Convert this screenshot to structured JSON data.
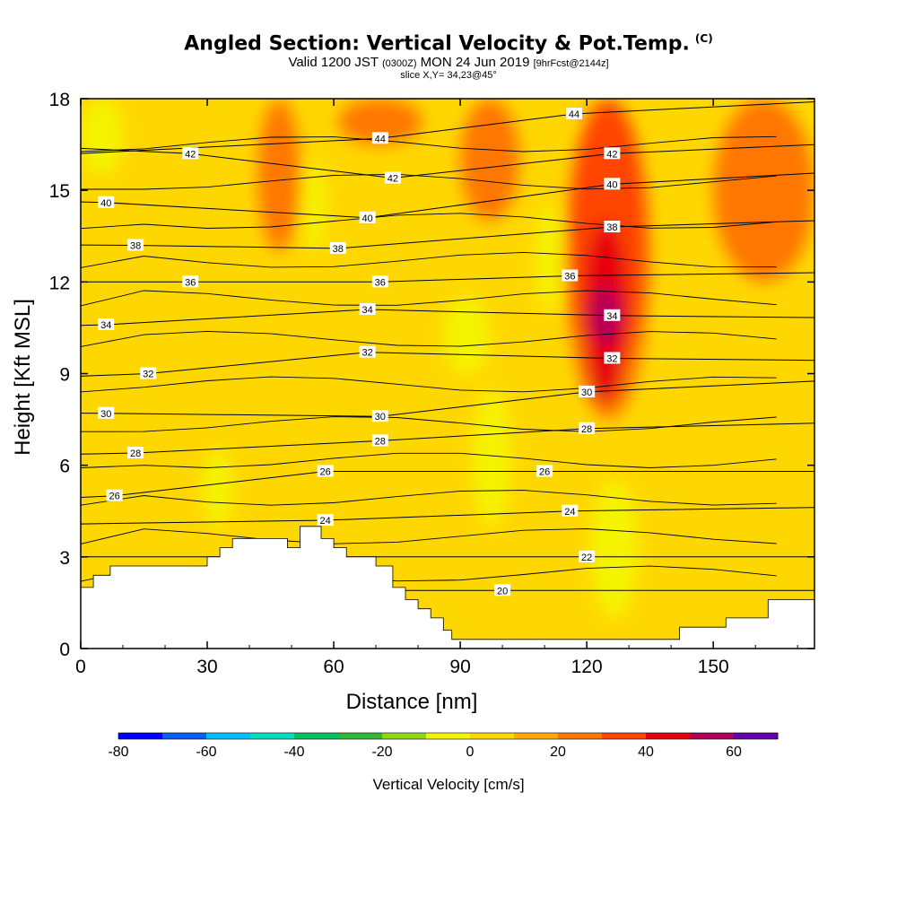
{
  "header": {
    "title": "Angled Section: Vertical Velocity & Pot.Temp.",
    "title_unit": "(C)",
    "valid_prefix": "Valid 1200 JST",
    "valid_zulu": "(0300Z)",
    "valid_date": "MON 24 Jun 2019",
    "forecast_tag": "[9hrFcst@2144z]",
    "slice": "slice X,Y= 34,23@45°"
  },
  "chart_data": {
    "type": "heatmap",
    "xlabel": "Distance [nm]",
    "ylabel": "Height [Kft MSL]",
    "xlim": [
      0,
      174
    ],
    "ylim": [
      0,
      18
    ],
    "xticks": [
      0,
      30,
      60,
      90,
      120,
      150
    ],
    "yticks": [
      0,
      3,
      6,
      9,
      12,
      15,
      18
    ],
    "colorbar": {
      "title": "Vertical Velocity [cm/s]",
      "min": -80,
      "max": 70,
      "step": 10,
      "labeled_ticks": [
        -80,
        -60,
        -40,
        -20,
        0,
        20,
        40,
        60
      ],
      "colors": [
        "#0000ff",
        "#0a5ff5",
        "#00bfff",
        "#00e0c0",
        "#00c060",
        "#33b833",
        "#8ed81a",
        "#f4f400",
        "#ffd700",
        "#ffaa00",
        "#ff7700",
        "#ff4400",
        "#e60010",
        "#b0005a",
        "#6600aa"
      ]
    },
    "terrain_kft": [
      [
        0,
        2.0
      ],
      [
        3,
        2.0
      ],
      [
        3,
        2.4
      ],
      [
        7,
        2.4
      ],
      [
        7,
        2.7
      ],
      [
        30,
        2.7
      ],
      [
        30,
        3.0
      ],
      [
        33,
        3.0
      ],
      [
        33,
        3.3
      ],
      [
        36,
        3.3
      ],
      [
        36,
        3.6
      ],
      [
        49,
        3.6
      ],
      [
        49,
        3.3
      ],
      [
        52,
        3.3
      ],
      [
        52,
        4.0
      ],
      [
        57,
        4.0
      ],
      [
        57,
        3.6
      ],
      [
        60,
        3.6
      ],
      [
        60,
        3.3
      ],
      [
        63,
        3.3
      ],
      [
        63,
        3.0
      ],
      [
        70,
        3.0
      ],
      [
        70,
        2.7
      ],
      [
        74,
        2.7
      ],
      [
        74,
        2.0
      ],
      [
        77,
        2.0
      ],
      [
        77,
        1.6
      ],
      [
        80,
        1.6
      ],
      [
        80,
        1.3
      ],
      [
        83,
        1.3
      ],
      [
        83,
        1.0
      ],
      [
        86,
        1.0
      ],
      [
        86,
        0.6
      ],
      [
        88,
        0.6
      ],
      [
        88,
        0.3
      ],
      [
        142,
        0.3
      ],
      [
        142,
        0.7
      ],
      [
        153,
        0.7
      ],
      [
        153,
        1.0
      ],
      [
        163,
        1.0
      ],
      [
        163,
        1.6
      ],
      [
        174,
        1.6
      ]
    ],
    "velocity_regions": [
      {
        "value": -10,
        "x": [
          0,
          10
        ],
        "y": [
          15.5,
          18
        ]
      },
      {
        "value": -10,
        "x": [
          53,
          58
        ],
        "y": [
          13.0,
          16.0
        ]
      },
      {
        "value": -10,
        "x": [
          29,
          36
        ],
        "y": [
          4.0,
          6.5
        ]
      },
      {
        "value": -10,
        "x": [
          86,
          97
        ],
        "y": [
          9.0,
          11.5
        ]
      },
      {
        "value": -10,
        "x": [
          93,
          102
        ],
        "y": [
          4.0,
          8.5
        ]
      },
      {
        "value": -10,
        "x": [
          108,
          114
        ],
        "y": [
          11.0,
          14.5
        ]
      },
      {
        "value": -10,
        "x": [
          121,
          132
        ],
        "y": [
          1.0,
          5.5
        ]
      },
      {
        "value": 20,
        "x": [
          42,
          52
        ],
        "y": [
          13,
          18
        ]
      },
      {
        "value": 20,
        "x": [
          90,
          104
        ],
        "y": [
          14,
          18
        ]
      },
      {
        "value": 20,
        "x": [
          61,
          81
        ],
        "y": [
          16.5,
          18
        ]
      },
      {
        "value": 20,
        "x": [
          115,
          135
        ],
        "y": [
          7.5,
          18
        ]
      },
      {
        "value": 20,
        "x": [
          150,
          174
        ],
        "y": [
          12,
          18
        ]
      },
      {
        "value": 30,
        "x": [
          116,
          134
        ],
        "y": [
          9,
          18
        ]
      },
      {
        "value": 40,
        "x": [
          119,
          130
        ],
        "y": [
          8,
          14
        ]
      },
      {
        "value": 50,
        "x": [
          121,
          128
        ],
        "y": [
          10,
          11.8
        ]
      }
    ],
    "isentrope_labels": [
      {
        "theta": 44,
        "points": [
          [
            71,
            16.7
          ],
          [
            117,
            17.5
          ]
        ]
      },
      {
        "theta": 42,
        "points": [
          [
            26,
            16.2
          ],
          [
            74,
            15.4
          ],
          [
            126,
            16.2
          ]
        ]
      },
      {
        "theta": 40,
        "points": [
          [
            6,
            14.6
          ],
          [
            68,
            14.1
          ],
          [
            126,
            15.2
          ]
        ]
      },
      {
        "theta": 38,
        "points": [
          [
            13,
            13.2
          ],
          [
            61,
            13.1
          ],
          [
            126,
            13.8
          ]
        ]
      },
      {
        "theta": 36,
        "points": [
          [
            26,
            12.0
          ],
          [
            71,
            12.0
          ],
          [
            116,
            12.2
          ]
        ]
      },
      {
        "theta": 34,
        "points": [
          [
            6,
            10.6
          ],
          [
            68,
            11.1
          ],
          [
            126,
            10.9
          ]
        ]
      },
      {
        "theta": 32,
        "points": [
          [
            16,
            9.0
          ],
          [
            68,
            9.7
          ],
          [
            126,
            9.5
          ]
        ]
      },
      {
        "theta": 30,
        "points": [
          [
            6,
            7.7
          ],
          [
            71,
            7.6
          ],
          [
            120,
            8.4
          ]
        ]
      },
      {
        "theta": 28,
        "points": [
          [
            13,
            6.4
          ],
          [
            71,
            6.8
          ],
          [
            120,
            7.2
          ]
        ]
      },
      {
        "theta": 26,
        "points": [
          [
            8,
            5.0
          ],
          [
            58,
            5.8
          ],
          [
            110,
            5.8
          ]
        ]
      },
      {
        "theta": 24,
        "points": [
          [
            58,
            4.2
          ],
          [
            116,
            4.5
          ]
        ]
      },
      {
        "theta": 22,
        "points": [
          [
            120,
            3.0
          ]
        ]
      },
      {
        "theta": 20,
        "points": [
          [
            100,
            1.9
          ]
        ]
      }
    ]
  }
}
